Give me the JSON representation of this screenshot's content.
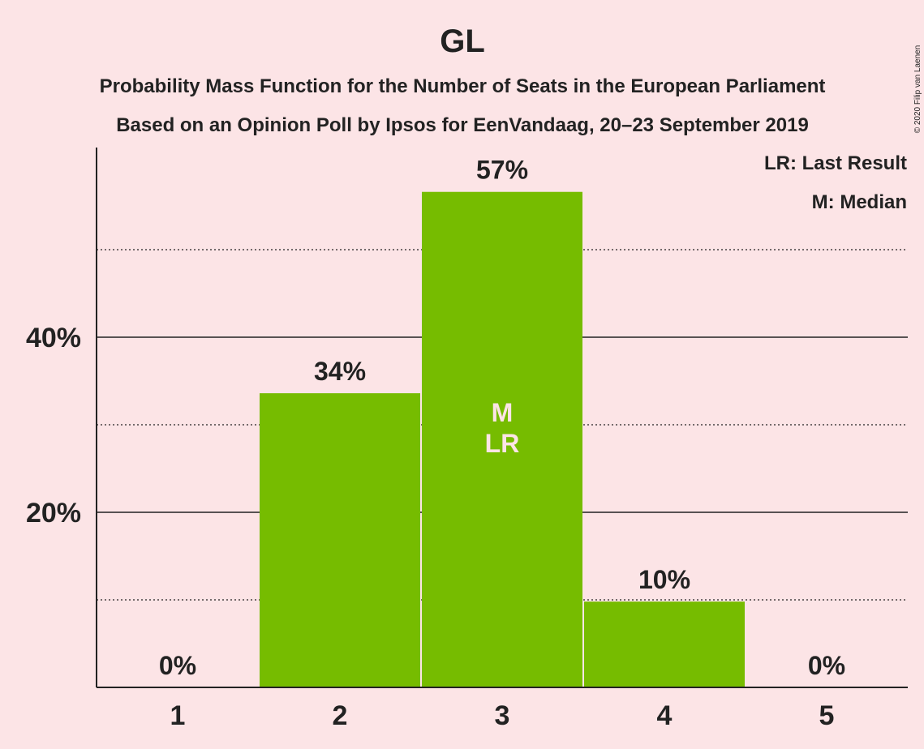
{
  "chart_data": {
    "type": "bar",
    "title": "GL",
    "subtitle_1": "Probability Mass Function for the Number of Seats in the European Parliament",
    "subtitle_2": "Based on an Opinion Poll by Ipsos for EenVandaag, 20–23 September 2019",
    "copyright": "© 2020 Filip van Laenen",
    "categories": [
      "1",
      "2",
      "3",
      "4",
      "5"
    ],
    "values": [
      0,
      33.6,
      56.6,
      9.8,
      0
    ],
    "value_labels": [
      "0%",
      "34%",
      "57%",
      "10%",
      "0%"
    ],
    "ylim": [
      0,
      62
    ],
    "y_ticks": [
      20,
      40
    ],
    "y_tick_labels": [
      "20%",
      "40%"
    ],
    "y_minor_ticks": [
      10,
      30,
      50
    ],
    "grid": true,
    "legend": {
      "placement": "top-right",
      "entries": [
        "LR: Last Result",
        "M: Median"
      ]
    },
    "markers": [
      {
        "category": "3",
        "lines": [
          "M",
          "LR"
        ]
      }
    ],
    "colors": {
      "bar": "#76bc00",
      "background": "#fce4e6",
      "text": "#222222",
      "axis": "#222222"
    }
  }
}
